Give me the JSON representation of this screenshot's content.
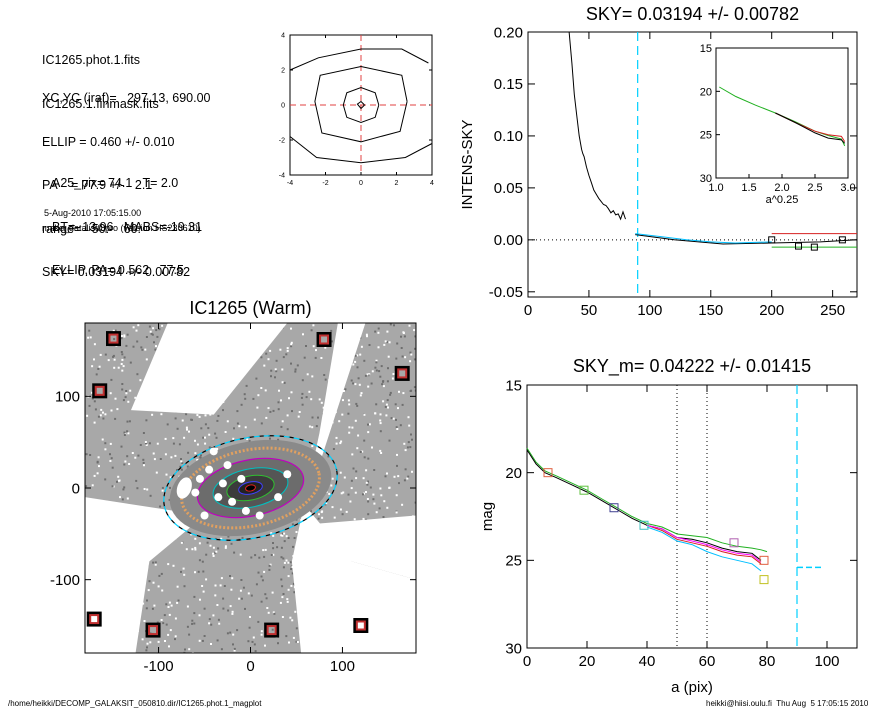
{
  "info": {
    "lines_a": [
      "IC1265.phot.1.fits",
      "IC1265.1.finmask.fits"
    ],
    "lines_b": [
      "XC,YC (iraf)=   297.13, 690.00",
      "ELLIP = 0.460 +/- 0.010",
      "PA    = 77.9 +/-   2.1",
      "range=   50.-   60.",
      "SKY= 0.03194 +/- 0.00782"
    ],
    "lines_c": [
      "A25_pix= 74.1   T= 2.0",
      "BT=  13.96   MABS=-19.31",
      "ELLIP, PA= 0.562   77.5"
    ],
    "date": "5-Aug-2010 17:05:15.00",
    "program": "make_datalist0.pro (version HS230610)"
  },
  "footer": {
    "path": "/home/heikki/DECOMP_GALAKSIT_050810.dir/IC1265.phot.1_magplot",
    "user": "heikki@hiisi.oulu.fi  Thu Aug  5 17:05:15 2010"
  },
  "chart_data": [
    {
      "type": "line",
      "id": "contour",
      "xlim": [
        -4,
        4
      ],
      "ylim": [
        -4,
        4
      ],
      "xticks": [
        -4,
        -2,
        0,
        2,
        4
      ],
      "yticks": [
        -4,
        -2,
        0,
        2,
        4
      ],
      "contours": [
        [
          [
            0.2,
            0
          ],
          [
            0,
            0.2
          ],
          [
            -0.2,
            0.05
          ],
          [
            0,
            -0.2
          ],
          [
            0.2,
            0
          ]
        ],
        [
          [
            1,
            0
          ],
          [
            0.8,
            0.7
          ],
          [
            0,
            1
          ],
          [
            -0.8,
            0.7
          ],
          [
            -1,
            0
          ],
          [
            -0.8,
            -0.7
          ],
          [
            0,
            -1
          ],
          [
            0.8,
            -0.7
          ],
          [
            1,
            0
          ]
        ],
        [
          [
            2.6,
            0.2
          ],
          [
            2.3,
            1.7
          ],
          [
            0,
            2.2
          ],
          [
            -2.3,
            1.7
          ],
          [
            -2.6,
            0.2
          ],
          [
            -2.2,
            -1.6
          ],
          [
            0,
            -2.1
          ],
          [
            2.2,
            -1.5
          ],
          [
            2.6,
            0.2
          ]
        ],
        [
          [
            3.8,
            2.4
          ],
          [
            2.3,
            3.2
          ],
          [
            0,
            3.2
          ],
          [
            -2.4,
            2.7
          ],
          [
            -4,
            2.0
          ]
        ],
        [
          [
            -4,
            -1.8
          ],
          [
            -2.5,
            -3.0
          ],
          [
            0,
            -3.3
          ],
          [
            2.5,
            -3.0
          ],
          [
            4,
            -2.2
          ]
        ]
      ]
    },
    {
      "type": "line",
      "id": "sky-profile",
      "title": "SKY= 0.03194 +/- 0.00782",
      "ylabel": "INTENS-SKY",
      "xlim": [
        0,
        270
      ],
      "ylim": [
        -0.055,
        0.2
      ],
      "xticks": [
        0,
        50,
        100,
        150,
        200,
        250
      ],
      "yticks": [
        -0.05,
        0.0,
        0.05,
        0.1,
        0.15,
        0.2
      ],
      "ytick_labels": [
        "-0.05",
        "0.00",
        "0.05",
        "0.10",
        "0.15",
        "0.20"
      ],
      "sky_line_x": 90,
      "series": [
        {
          "color": "#000000",
          "x": [
            33,
            36,
            38,
            40,
            42,
            44,
            45,
            46,
            48,
            50,
            52,
            54,
            56,
            58,
            60,
            62,
            64,
            66,
            68,
            70,
            72,
            74,
            76,
            78,
            80
          ],
          "y": [
            0.21,
            0.17,
            0.14,
            0.12,
            0.1,
            0.087,
            0.083,
            0.08,
            0.07,
            0.062,
            0.055,
            0.048,
            0.044,
            0.04,
            0.037,
            0.034,
            0.033,
            0.03,
            0.026,
            0.028,
            0.024,
            0.025,
            0.02,
            0.027,
            0.02
          ]
        },
        {
          "color": "#000000",
          "x": [
            88,
            120,
            160,
            200,
            240,
            270
          ],
          "y": [
            0.005,
            0.0,
            -0.004,
            -0.003,
            -0.002,
            0.0
          ]
        },
        {
          "color": "#00bfff",
          "x": [
            88,
            110,
            130,
            150,
            170,
            200
          ],
          "y": [
            0.006,
            0.003,
            0.0,
            -0.002,
            -0.003,
            -0.002
          ]
        },
        {
          "color": "#d62020",
          "x": [
            200,
            270
          ],
          "y": [
            0.006,
            0.006
          ]
        },
        {
          "color": "#20b020",
          "x": [
            200,
            270
          ],
          "y": [
            -0.007,
            -0.007
          ]
        }
      ],
      "markers": [
        {
          "x": 200,
          "y": 0.0,
          "color": "#000000"
        },
        {
          "x": 222,
          "y": -0.006,
          "color": "#000000"
        },
        {
          "x": 235,
          "y": -0.007,
          "color": "#000000"
        },
        {
          "x": 258,
          "y": 0.0,
          "color": "#000000"
        }
      ],
      "inset": {
        "xlabel": "a^0.25",
        "xlim": [
          1.0,
          3.0
        ],
        "ylim": [
          15,
          30
        ],
        "xticks": [
          1.0,
          1.5,
          2.0,
          2.5,
          3.0
        ],
        "xtick_labels": [
          "1.0",
          "1.5",
          "2.0",
          "2.5",
          "3.0"
        ],
        "yticks": [
          15,
          20,
          25,
          30
        ],
        "series": [
          {
            "color": "#20b020",
            "x": [
              1.05,
              1.3,
              1.6,
              1.9,
              2.2,
              2.5,
              2.7,
              2.9,
              2.95
            ],
            "y": [
              19.5,
              20.6,
              21.6,
              22.5,
              23.5,
              24.6,
              25.1,
              25.5,
              26.3
            ]
          },
          {
            "color": "#d62020",
            "x": [
              1.9,
              2.2,
              2.5,
              2.7,
              2.9,
              2.95
            ],
            "y": [
              22.5,
              23.6,
              24.6,
              25.0,
              25.2,
              25.8
            ]
          },
          {
            "color": "#000000",
            "x": [
              1.9,
              2.2,
              2.5,
              2.7,
              2.9,
              2.95
            ],
            "y": [
              22.5,
              23.6,
              24.8,
              25.4,
              25.6,
              26.0
            ]
          }
        ]
      }
    },
    {
      "type": "image",
      "id": "galaxy-image",
      "title": "IC1265 (Warm)",
      "xlim": [
        -180,
        180
      ],
      "ylim": [
        -180,
        180
      ],
      "xticks": [
        -100,
        0,
        100
      ],
      "yticks": [
        -100,
        0,
        100
      ],
      "mask_squares": [
        [
          -149,
          163
        ],
        [
          -164,
          106
        ],
        [
          80,
          162
        ],
        [
          165,
          125
        ],
        [
          -170,
          -143
        ],
        [
          -106,
          -155
        ],
        [
          23,
          -155
        ],
        [
          120,
          -150
        ]
      ]
    },
    {
      "type": "line",
      "id": "mag-profile",
      "title": "SKY_m=  0.04222 +/- 0.01415",
      "xlabel": "a (pix)",
      "ylabel": "mag",
      "xlim": [
        0,
        110
      ],
      "ylim": [
        15,
        30
      ],
      "xticks": [
        0,
        20,
        40,
        60,
        80,
        100
      ],
      "yticks": [
        15,
        20,
        25,
        30
      ],
      "dotted_lines_x": [
        50,
        60
      ],
      "sky_line_x": 90,
      "series": [
        {
          "color": "#20b020",
          "x": [
            0,
            3,
            6,
            10,
            15,
            20,
            25,
            30,
            35,
            40,
            45,
            50,
            55,
            60,
            65,
            70,
            75,
            78,
            80
          ],
          "y": [
            18.6,
            19.4,
            19.9,
            20.2,
            20.6,
            21.0,
            21.5,
            22.0,
            22.5,
            22.9,
            23.1,
            23.5,
            23.6,
            23.7,
            24.0,
            24.2,
            24.3,
            24.4,
            24.5
          ]
        },
        {
          "color": "#000000",
          "x": [
            0,
            3,
            6,
            10,
            15,
            20,
            25,
            30,
            35,
            40,
            45,
            50,
            55,
            60,
            65,
            70,
            75,
            78
          ],
          "y": [
            18.7,
            19.5,
            20.0,
            20.3,
            20.7,
            21.1,
            21.6,
            22.1,
            22.6,
            23.0,
            23.2,
            23.7,
            23.8,
            24.0,
            24.3,
            24.5,
            24.6,
            25.0
          ]
        },
        {
          "color": "#d62020",
          "x": [
            40,
            45,
            50,
            55,
            60,
            65,
            70,
            75,
            78
          ],
          "y": [
            23.0,
            23.3,
            23.8,
            24.0,
            24.2,
            24.5,
            24.7,
            24.8,
            25.2
          ]
        },
        {
          "color": "#00bfff",
          "x": [
            40,
            45,
            50,
            55,
            60,
            65,
            70,
            75,
            78
          ],
          "y": [
            23.1,
            23.4,
            23.9,
            24.1,
            24.5,
            24.8,
            25.0,
            25.2,
            25.6
          ]
        },
        {
          "color": "#ff00ff",
          "x": [
            40,
            45,
            50,
            55,
            60,
            65,
            70,
            75,
            78
          ],
          "y": [
            23.0,
            23.2,
            23.7,
            23.9,
            24.1,
            24.4,
            24.6,
            24.7,
            25.1
          ]
        }
      ],
      "markers": [
        {
          "x": 7,
          "y": 20.0,
          "color": "#e06040"
        },
        {
          "x": 19,
          "y": 21.0,
          "color": "#60c040"
        },
        {
          "x": 29,
          "y": 22.0,
          "color": "#404090"
        },
        {
          "x": 39,
          "y": 23.0,
          "color": "#40c0c0"
        },
        {
          "x": 69,
          "y": 24.0,
          "color": "#b060b0"
        },
        {
          "x": 79,
          "y": 25.0,
          "color": "#e06040"
        },
        {
          "x": 79,
          "y": 26.1,
          "color": "#c0c020"
        }
      ],
      "sky_segment": {
        "x": [
          90,
          98
        ],
        "y": 25.4
      }
    }
  ]
}
